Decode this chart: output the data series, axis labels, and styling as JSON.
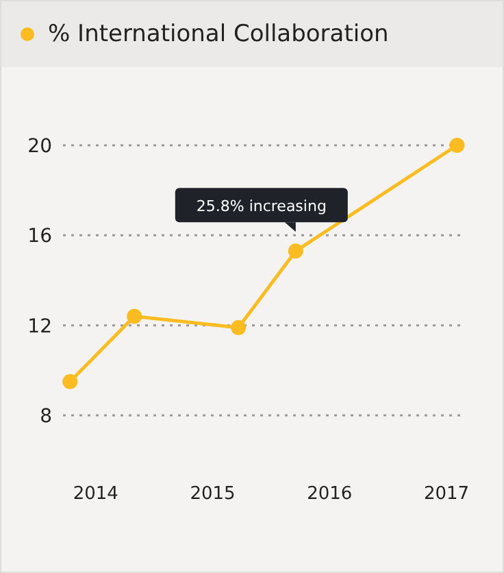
{
  "chart_data": {
    "type": "line",
    "x": [
      2013.78,
      2014.33,
      2015.22,
      2015.71,
      2017.09
    ],
    "series": [
      {
        "name": "% International Collaboration",
        "color": "#fbbc22",
        "values": [
          9.5,
          12.4,
          11.9,
          15.3,
          20
        ]
      }
    ],
    "xlim": [
      2013.72,
      2017.14
    ],
    "xticks": [
      2014,
      2015,
      2016,
      2017
    ],
    "ylim": [
      8,
      20
    ],
    "yticks": [
      8,
      12,
      16,
      20
    ],
    "grid": "y",
    "legend": "top left",
    "marker": "circle",
    "line_style": "solid",
    "annotations": [
      {
        "text": "25.8% increasing",
        "x": 2015.71,
        "y": 15.3
      }
    ]
  }
}
